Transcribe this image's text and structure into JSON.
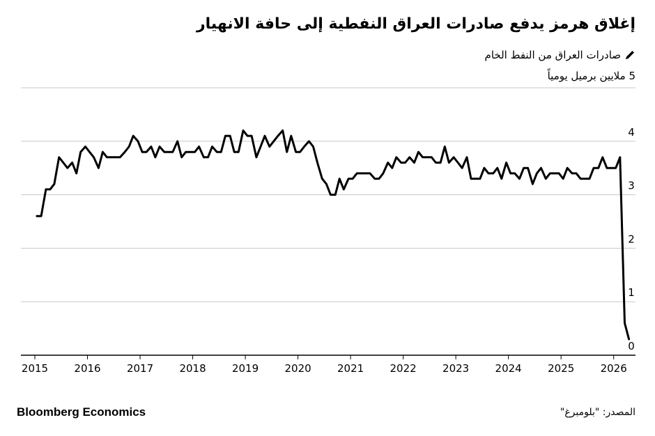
{
  "header": {
    "title": "إغلاق هرمز يدفع صادرات العراق النفطية إلى حافة الانهيار",
    "legend_label": "صادرات العراق من النفط الخام",
    "unit_label": "ملايين برميل يومياً"
  },
  "footer": {
    "brand": "Bloomberg Economics",
    "source": "المصدر: \"بلومبرغ\""
  },
  "colors": {
    "line": "#000000",
    "grid": "#c8c8c8",
    "axis": "#000000"
  },
  "chart_data": {
    "type": "line",
    "ylim": [
      0,
      5
    ],
    "xlim": [
      2015,
      2026.6
    ],
    "y_ticks": [
      "0",
      "1",
      "2",
      "3",
      "4",
      "5"
    ],
    "x_ticks": [
      "2015",
      "2016",
      "2017",
      "2018",
      "2019",
      "2020",
      "2021",
      "2022",
      "2023",
      "2024",
      "2025",
      "2026"
    ],
    "grid": true,
    "series": [
      {
        "x": [
          2015.04,
          2015.12,
          2015.21,
          2015.29,
          2015.37,
          2015.46,
          2015.54,
          2015.62,
          2015.71,
          2015.79,
          2015.87,
          2015.96,
          2016.04,
          2016.12,
          2016.21,
          2016.29,
          2016.37,
          2016.46,
          2016.54,
          2016.62,
          2016.71,
          2016.79,
          2016.87,
          2016.96,
          2017.04,
          2017.12,
          2017.21,
          2017.29,
          2017.37,
          2017.46,
          2017.54,
          2017.62,
          2017.71,
          2017.79,
          2017.87,
          2017.96,
          2018.04,
          2018.12,
          2018.21,
          2018.29,
          2018.37,
          2018.46,
          2018.54,
          2018.62,
          2018.71,
          2018.79,
          2018.87,
          2018.96,
          2019.04,
          2019.12,
          2019.21,
          2019.29,
          2019.37,
          2019.46,
          2019.54,
          2019.62,
          2019.71,
          2019.79,
          2019.87,
          2019.96,
          2020.04,
          2020.12,
          2020.21,
          2020.29,
          2020.37,
          2020.46,
          2020.54,
          2020.62,
          2020.71,
          2020.79,
          2020.87,
          2020.96,
          2021.04,
          2021.12,
          2021.21,
          2021.29,
          2021.37,
          2021.46,
          2021.54,
          2021.62,
          2021.71,
          2021.79,
          2021.87,
          2021.96,
          2022.04,
          2022.12,
          2022.21,
          2022.29,
          2022.37,
          2022.46,
          2022.54,
          2022.62,
          2022.71,
          2022.79,
          2022.87,
          2022.96,
          2023.04,
          2023.12,
          2023.21,
          2023.29,
          2023.37,
          2023.46,
          2023.54,
          2023.62,
          2023.71,
          2023.79,
          2023.87,
          2023.96,
          2024.04,
          2024.12,
          2024.21,
          2024.29,
          2024.37,
          2024.46,
          2024.54,
          2024.62,
          2024.71,
          2024.79,
          2024.87,
          2024.96,
          2025.04,
          2025.12,
          2025.21,
          2025.29,
          2025.37,
          2025.46,
          2025.54,
          2025.62,
          2025.71,
          2025.79,
          2025.87,
          2025.96,
          2026.04,
          2026.12,
          2026.21,
          2026.29
        ],
        "y": [
          2.6,
          2.6,
          3.1,
          3.1,
          3.2,
          3.7,
          3.6,
          3.5,
          3.6,
          3.4,
          3.8,
          3.9,
          3.8,
          3.7,
          3.5,
          3.8,
          3.7,
          3.7,
          3.7,
          3.7,
          3.8,
          3.9,
          4.1,
          4.0,
          3.8,
          3.8,
          3.9,
          3.7,
          3.9,
          3.8,
          3.8,
          3.8,
          4.0,
          3.7,
          3.8,
          3.8,
          3.8,
          3.9,
          3.7,
          3.7,
          3.9,
          3.8,
          3.8,
          4.1,
          4.1,
          3.8,
          3.8,
          4.2,
          4.1,
          4.1,
          3.7,
          3.9,
          4.1,
          3.9,
          4.0,
          4.1,
          4.2,
          3.8,
          4.1,
          3.8,
          3.8,
          3.9,
          4.0,
          3.9,
          3.6,
          3.3,
          3.2,
          3.0,
          3.0,
          3.3,
          3.1,
          3.3,
          3.3,
          3.4,
          3.4,
          3.4,
          3.4,
          3.3,
          3.3,
          3.4,
          3.6,
          3.5,
          3.7,
          3.6,
          3.6,
          3.7,
          3.6,
          3.8,
          3.7,
          3.7,
          3.7,
          3.6,
          3.6,
          3.9,
          3.6,
          3.7,
          3.6,
          3.5,
          3.7,
          3.3,
          3.3,
          3.3,
          3.5,
          3.4,
          3.4,
          3.5,
          3.3,
          3.6,
          3.4,
          3.4,
          3.3,
          3.5,
          3.5,
          3.2,
          3.4,
          3.5,
          3.3,
          3.4,
          3.4,
          3.4,
          3.3,
          3.5,
          3.4,
          3.4,
          3.3,
          3.3,
          3.3,
          3.5,
          3.5,
          3.7,
          3.5,
          3.5,
          3.5,
          3.7,
          0.6,
          0.3
        ]
      }
    ]
  }
}
